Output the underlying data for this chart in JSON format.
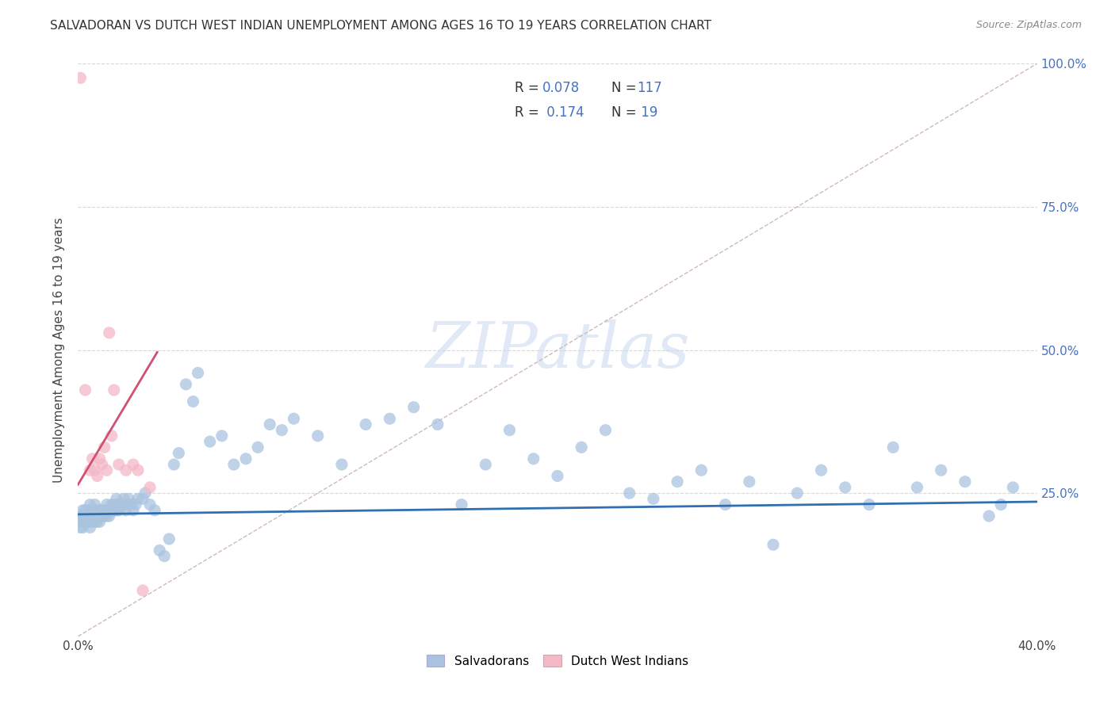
{
  "title": "SALVADORAN VS DUTCH WEST INDIAN UNEMPLOYMENT AMONG AGES 16 TO 19 YEARS CORRELATION CHART",
  "source": "Source: ZipAtlas.com",
  "ylabel": "Unemployment Among Ages 16 to 19 years",
  "xlim": [
    0.0,
    0.4
  ],
  "ylim": [
    0.0,
    1.0
  ],
  "blue_color": "#aac4e0",
  "pink_color": "#f4b8c8",
  "blue_line_color": "#3070b0",
  "pink_line_color": "#d05070",
  "dashed_line_color": "#d0b8c0",
  "grid_color": "#d8d8d8",
  "label1": "Salvadorans",
  "label2": "Dutch West Indians",
  "blue_intercept": 0.213,
  "blue_slope": 0.055,
  "pink_intercept": 0.265,
  "pink_slope": 7.0,
  "pink_line_xend": 0.033,
  "blue_scatter_x": [
    0.001,
    0.001,
    0.001,
    0.002,
    0.002,
    0.002,
    0.002,
    0.003,
    0.003,
    0.003,
    0.004,
    0.004,
    0.004,
    0.005,
    0.005,
    0.005,
    0.005,
    0.006,
    0.006,
    0.006,
    0.007,
    0.007,
    0.007,
    0.007,
    0.008,
    0.008,
    0.008,
    0.009,
    0.009,
    0.009,
    0.01,
    0.01,
    0.011,
    0.011,
    0.012,
    0.012,
    0.012,
    0.013,
    0.013,
    0.014,
    0.014,
    0.015,
    0.015,
    0.016,
    0.016,
    0.017,
    0.017,
    0.018,
    0.019,
    0.02,
    0.02,
    0.021,
    0.022,
    0.023,
    0.024,
    0.025,
    0.027,
    0.028,
    0.03,
    0.032,
    0.034,
    0.036,
    0.038,
    0.04,
    0.042,
    0.045,
    0.048,
    0.05,
    0.055,
    0.06,
    0.065,
    0.07,
    0.075,
    0.08,
    0.085,
    0.09,
    0.1,
    0.11,
    0.12,
    0.13,
    0.14,
    0.15,
    0.16,
    0.17,
    0.18,
    0.19,
    0.2,
    0.21,
    0.22,
    0.23,
    0.24,
    0.25,
    0.26,
    0.27,
    0.28,
    0.29,
    0.3,
    0.31,
    0.32,
    0.33,
    0.34,
    0.35,
    0.36,
    0.37,
    0.38,
    0.385,
    0.39
  ],
  "blue_scatter_y": [
    0.21,
    0.2,
    0.19,
    0.22,
    0.21,
    0.2,
    0.19,
    0.21,
    0.2,
    0.22,
    0.21,
    0.2,
    0.22,
    0.21,
    0.2,
    0.23,
    0.19,
    0.22,
    0.21,
    0.2,
    0.22,
    0.21,
    0.2,
    0.23,
    0.22,
    0.2,
    0.21,
    0.22,
    0.21,
    0.2,
    0.22,
    0.21,
    0.22,
    0.21,
    0.22,
    0.23,
    0.21,
    0.22,
    0.21,
    0.23,
    0.22,
    0.22,
    0.23,
    0.22,
    0.24,
    0.23,
    0.22,
    0.23,
    0.24,
    0.23,
    0.22,
    0.24,
    0.23,
    0.22,
    0.23,
    0.24,
    0.24,
    0.25,
    0.23,
    0.22,
    0.15,
    0.14,
    0.17,
    0.3,
    0.32,
    0.44,
    0.41,
    0.46,
    0.34,
    0.35,
    0.3,
    0.31,
    0.33,
    0.37,
    0.36,
    0.38,
    0.35,
    0.3,
    0.37,
    0.38,
    0.4,
    0.37,
    0.23,
    0.3,
    0.36,
    0.31,
    0.28,
    0.33,
    0.36,
    0.25,
    0.24,
    0.27,
    0.29,
    0.23,
    0.27,
    0.16,
    0.25,
    0.29,
    0.26,
    0.23,
    0.33,
    0.26,
    0.29,
    0.27,
    0.21,
    0.23,
    0.26
  ],
  "pink_scatter_x": [
    0.001,
    0.003,
    0.005,
    0.006,
    0.007,
    0.008,
    0.009,
    0.01,
    0.011,
    0.012,
    0.013,
    0.014,
    0.015,
    0.017,
    0.02,
    0.023,
    0.025,
    0.027,
    0.03
  ],
  "pink_scatter_y": [
    0.975,
    0.43,
    0.29,
    0.31,
    0.29,
    0.28,
    0.31,
    0.3,
    0.33,
    0.29,
    0.53,
    0.35,
    0.43,
    0.3,
    0.29,
    0.3,
    0.29,
    0.08,
    0.26
  ]
}
